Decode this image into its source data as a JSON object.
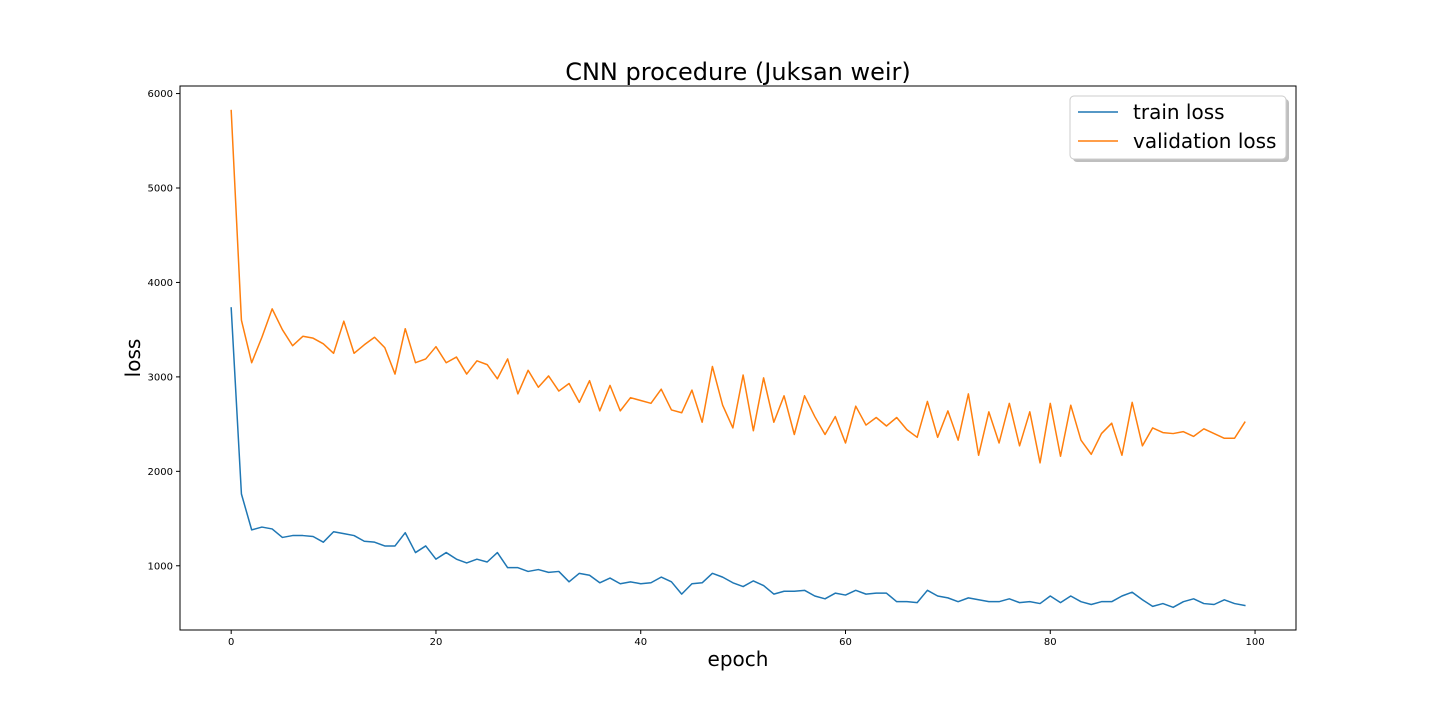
{
  "chart_data": {
    "type": "line",
    "title": "CNN procedure (Juksan weir)",
    "xlabel": "epoch",
    "ylabel": "loss",
    "xlim": [
      -5,
      104
    ],
    "ylim": [
      320,
      6080
    ],
    "xticks": [
      0,
      20,
      40,
      60,
      80,
      100
    ],
    "yticks": [
      1000,
      2000,
      3000,
      4000,
      5000,
      6000
    ],
    "grid": false,
    "legend_position": "upper right",
    "x": [
      0,
      1,
      2,
      3,
      4,
      5,
      6,
      7,
      8,
      9,
      10,
      11,
      12,
      13,
      14,
      15,
      16,
      17,
      18,
      19,
      20,
      21,
      22,
      23,
      24,
      25,
      26,
      27,
      28,
      29,
      30,
      31,
      32,
      33,
      34,
      35,
      36,
      37,
      38,
      39,
      40,
      41,
      42,
      43,
      44,
      45,
      46,
      47,
      48,
      49,
      50,
      51,
      52,
      53,
      54,
      55,
      56,
      57,
      58,
      59,
      60,
      61,
      62,
      63,
      64,
      65,
      66,
      67,
      68,
      69,
      70,
      71,
      72,
      73,
      74,
      75,
      76,
      77,
      78,
      79,
      80,
      81,
      82,
      83,
      84,
      85,
      86,
      87,
      88,
      89,
      90,
      91,
      92,
      93,
      94,
      95,
      96,
      97,
      98,
      99
    ],
    "series": [
      {
        "name": "train loss",
        "color": "#1f77b4",
        "values": [
          3730,
          1760,
          1380,
          1410,
          1390,
          1300,
          1320,
          1320,
          1310,
          1250,
          1360,
          1340,
          1320,
          1260,
          1250,
          1210,
          1210,
          1350,
          1140,
          1210,
          1070,
          1140,
          1070,
          1030,
          1070,
          1040,
          1140,
          980,
          980,
          940,
          960,
          930,
          940,
          830,
          920,
          900,
          820,
          870,
          810,
          830,
          810,
          820,
          880,
          830,
          700,
          810,
          820,
          920,
          880,
          820,
          780,
          840,
          790,
          700,
          730,
          730,
          740,
          680,
          650,
          710,
          690,
          740,
          700,
          710,
          710,
          620,
          620,
          610,
          740,
          680,
          660,
          620,
          660,
          640,
          620,
          620,
          650,
          610,
          620,
          600,
          680,
          610,
          680,
          620,
          590,
          620,
          620,
          680,
          720,
          640,
          570,
          600,
          560,
          620,
          650,
          600,
          590,
          640,
          600,
          580
        ]
      },
      {
        "name": "validation loss",
        "color": "#ff7f0e",
        "values": [
          5820,
          3600,
          3150,
          3420,
          3720,
          3500,
          3330,
          3430,
          3410,
          3350,
          3250,
          3590,
          3250,
          3340,
          3420,
          3310,
          3030,
          3510,
          3150,
          3190,
          3320,
          3150,
          3210,
          3030,
          3170,
          3130,
          2980,
          3190,
          2820,
          3070,
          2890,
          3010,
          2850,
          2930,
          2730,
          2960,
          2640,
          2910,
          2640,
          2780,
          2750,
          2720,
          2870,
          2650,
          2620,
          2860,
          2520,
          3110,
          2700,
          2460,
          3020,
          2430,
          2990,
          2520,
          2800,
          2390,
          2800,
          2580,
          2390,
          2580,
          2300,
          2690,
          2490,
          2570,
          2480,
          2570,
          2440,
          2360,
          2740,
          2360,
          2640,
          2330,
          2820,
          2170,
          2630,
          2300,
          2720,
          2270,
          2630,
          2090,
          2720,
          2160,
          2700,
          2330,
          2180,
          2400,
          2510,
          2170,
          2730,
          2270,
          2460,
          2410,
          2400,
          2420,
          2370,
          2450,
          2400,
          2350,
          2350,
          2520
        ]
      }
    ]
  }
}
